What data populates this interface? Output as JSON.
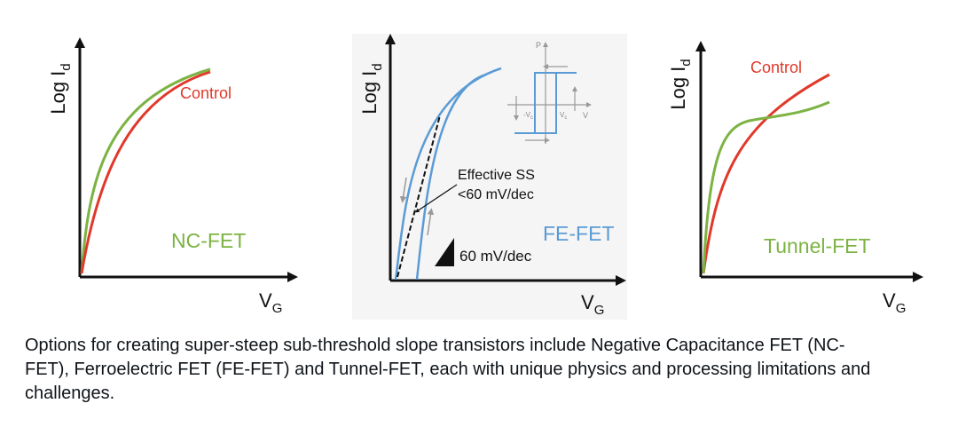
{
  "panels": [
    {
      "y_label": {
        "main": "Log I",
        "sub": "d"
      },
      "x_label": {
        "main": "V",
        "sub": "G"
      },
      "curve_label": "Control",
      "device": "NC-FET"
    },
    {
      "y_label": {
        "main": "Log I",
        "sub": "d"
      },
      "x_label": {
        "main": "V",
        "sub": "G"
      },
      "annotation": [
        "Effective SS",
        "<60 mV/dec"
      ],
      "device": "FE-FET",
      "slope_label": "60 mV/dec",
      "inset": {
        "y_axis": "P",
        "x_axis": "V",
        "neg_coercive": {
          "main": "-V",
          "sub": "c"
        },
        "pos_coercive": {
          "main": "V",
          "sub": "c"
        }
      }
    },
    {
      "y_label": {
        "main": "Log I",
        "sub": "d"
      },
      "x_label": {
        "main": "V",
        "sub": "G"
      },
      "curve_label": "Control",
      "device": "Tunnel-FET"
    }
  ],
  "caption": "Options for creating super-steep sub-threshold slope transistors include Negative Capacitance FET (NC-FET), Ferroelectric FET (FE-FET) and Tunnel-FET, each with unique physics and processing limitations and challenges."
}
